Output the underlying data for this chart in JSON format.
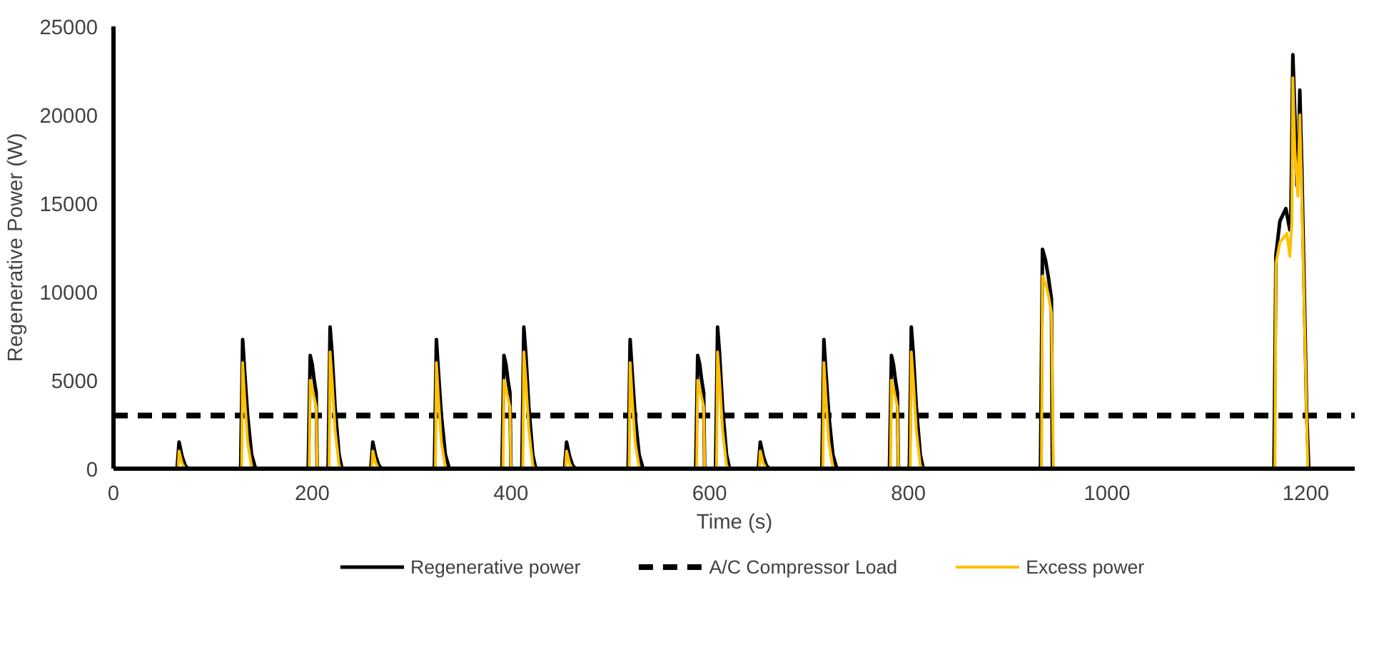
{
  "chart_data": {
    "type": "line",
    "xlabel": "Time (s)",
    "ylabel": "Regenerative Power (W)",
    "xlim": [
      0,
      1250
    ],
    "xticks": [
      0,
      200,
      400,
      600,
      800,
      1000,
      1200
    ],
    "ylim": [
      0,
      25000
    ],
    "yticks": [
      0,
      5000,
      10000,
      15000,
      20000,
      25000
    ],
    "grid": false,
    "legend": "bottom",
    "marker": "none",
    "series": [
      {
        "name": "Regenerative power",
        "color": "#000000",
        "line_style": "solid",
        "x": [
          0,
          64,
          66,
          69,
          72,
          75,
          128,
          130,
          132,
          135,
          139,
          143,
          196,
          198,
          200,
          202,
          204,
          205,
          216,
          218,
          220,
          223,
          227,
          230,
          259,
          261,
          264,
          267,
          270,
          323,
          325,
          327,
          330,
          334,
          338,
          391,
          393,
          395,
          397,
          399,
          400,
          411,
          413,
          415,
          418,
          422,
          425,
          454,
          456,
          459,
          462,
          465,
          518,
          520,
          522,
          525,
          529,
          533,
          586,
          588,
          590,
          592,
          594,
          595,
          606,
          608,
          610,
          613,
          617,
          620,
          649,
          651,
          654,
          657,
          660,
          713,
          715,
          717,
          720,
          724,
          728,
          781,
          783,
          785,
          787,
          789,
          790,
          801,
          803,
          805,
          808,
          812,
          815,
          933,
          935,
          938,
          941,
          944,
          945,
          1168,
          1170,
          1174,
          1180,
          1184,
          1185,
          1187,
          1189,
          1191,
          1193,
          1194,
          1196,
          1201,
          1203
        ],
        "values": [
          0,
          0,
          1500,
          700,
          200,
          0,
          0,
          7300,
          5500,
          3000,
          800,
          0,
          0,
          6400,
          5900,
          5000,
          4300,
          0,
          0,
          8000,
          6500,
          3500,
          800,
          0,
          0,
          1500,
          700,
          200,
          0,
          0,
          7300,
          5500,
          3000,
          800,
          0,
          0,
          6400,
          5900,
          5000,
          4300,
          0,
          0,
          8000,
          6500,
          3500,
          800,
          0,
          0,
          1500,
          700,
          200,
          0,
          0,
          7300,
          5500,
          3000,
          800,
          0,
          0,
          6400,
          5900,
          5000,
          4300,
          0,
          0,
          8000,
          6500,
          3500,
          800,
          0,
          0,
          1500,
          700,
          200,
          0,
          0,
          7300,
          5500,
          3000,
          800,
          0,
          0,
          6400,
          5900,
          5000,
          4300,
          0,
          0,
          8000,
          6500,
          3500,
          800,
          0,
          0,
          12400,
          11800,
          10800,
          9600,
          0,
          0,
          12100,
          14000,
          14700,
          13500,
          14000,
          23400,
          20000,
          16000,
          18000,
          21400,
          17000,
          3000,
          0
        ]
      },
      {
        "name": "A/C Compressor Load",
        "color": "#000000",
        "line_style": "dashed",
        "x": [
          0,
          1250
        ],
        "values": [
          3000,
          3000
        ]
      },
      {
        "name": "Excess power",
        "color": "#ffc000",
        "line_style": "solid",
        "x": [
          0,
          55,
          58,
          64,
          65,
          66,
          69,
          72,
          90,
          92,
          124,
          129,
          130,
          132,
          135,
          139,
          141,
          159,
          161,
          195,
          197,
          198,
          200,
          202,
          204,
          205,
          217,
          218,
          220,
          223,
          227,
          229,
          249,
          251,
          259,
          260,
          261,
          264,
          267,
          285,
          287,
          319,
          324,
          325,
          327,
          330,
          334,
          336,
          354,
          356,
          390,
          392,
          393,
          395,
          397,
          399,
          400,
          412,
          413,
          415,
          418,
          422,
          424,
          444,
          446,
          454,
          455,
          456,
          459,
          462,
          480,
          482,
          514,
          519,
          520,
          522,
          525,
          529,
          531,
          549,
          551,
          585,
          587,
          588,
          590,
          592,
          594,
          595,
          607,
          608,
          610,
          613,
          617,
          619,
          639,
          641,
          649,
          650,
          651,
          654,
          657,
          675,
          677,
          709,
          714,
          715,
          717,
          720,
          724,
          726,
          744,
          746,
          780,
          782,
          783,
          785,
          787,
          789,
          790,
          802,
          803,
          805,
          808,
          812,
          814,
          834,
          836,
          934,
          935,
          938,
          941,
          944,
          946,
          1000,
          1169,
          1170,
          1174,
          1181,
          1184,
          1186,
          1187,
          1189,
          1192,
          1194,
          1196,
          1202,
          1222
        ],
        "values": [
          0,
          0,
          null,
          0,
          0,
          1000,
          300,
          0,
          0,
          null,
          0,
          0,
          6000,
          4000,
          1500,
          100,
          0,
          0,
          null,
          0,
          0,
          5000,
          4500,
          4000,
          3500,
          0,
          0,
          6600,
          5000,
          2200,
          200,
          0,
          0,
          null,
          0,
          0,
          1000,
          300,
          0,
          0,
          null,
          0,
          0,
          6000,
          4000,
          1500,
          100,
          0,
          0,
          null,
          0,
          0,
          5000,
          4500,
          4000,
          3500,
          0,
          0,
          6600,
          5000,
          2200,
          200,
          0,
          0,
          null,
          0,
          0,
          1000,
          300,
          0,
          0,
          null,
          0,
          0,
          6000,
          4000,
          1500,
          100,
          0,
          0,
          null,
          0,
          0,
          5000,
          4500,
          4000,
          3500,
          0,
          0,
          6600,
          5000,
          2200,
          200,
          0,
          0,
          null,
          0,
          0,
          1000,
          300,
          0,
          0,
          null,
          0,
          0,
          6000,
          4000,
          1500,
          100,
          0,
          0,
          null,
          0,
          0,
          5000,
          4500,
          4000,
          3500,
          0,
          0,
          6600,
          5000,
          2200,
          200,
          0,
          0,
          null,
          0,
          10900,
          10500,
          9800,
          8800,
          0,
          null,
          0,
          11600,
          12800,
          13300,
          12000,
          14000,
          22100,
          18000,
          15400,
          20000,
          15500,
          0,
          0
        ]
      }
    ]
  }
}
